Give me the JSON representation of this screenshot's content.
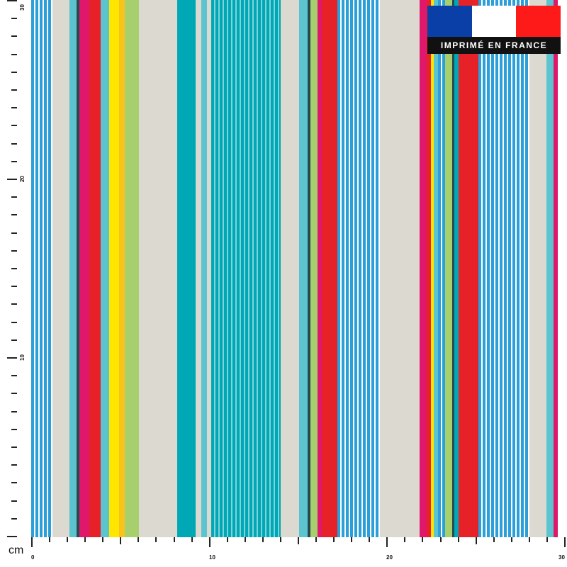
{
  "badge": {
    "text": "IMPRIMÉ EN FRANCE",
    "flag_colors": [
      "#0b3fa8",
      "#ffffff",
      "#ff1a1a"
    ]
  },
  "rulers": {
    "unit": "cm",
    "bottom_labels": [
      "0",
      "10",
      "20",
      "30"
    ],
    "left_labels": [
      "10",
      "20",
      "30"
    ]
  },
  "pattern": {
    "colors": {
      "sky": "#2a9fd9",
      "aqua": "#5cc4cf",
      "teal": "#00a8b5",
      "beige": "#dcd9d1",
      "magenta": "#e0186c",
      "red": "#e62127",
      "yellow": "#ffe600",
      "orange": "#f9c31b",
      "lime": "#a8cf6e",
      "dark": "#264a50"
    },
    "stripes": [
      {
        "w": 30,
        "c": "sky",
        "pin": "#ffffff"
      },
      {
        "w": 24,
        "c": "beige"
      },
      {
        "w": 10,
        "c": "aqua"
      },
      {
        "w": 4,
        "c": "dark"
      },
      {
        "w": 14,
        "c": "magenta"
      },
      {
        "w": 16,
        "c": "red"
      },
      {
        "w": 12,
        "c": "aqua"
      },
      {
        "w": 14,
        "c": "yellow"
      },
      {
        "w": 8,
        "c": "orange"
      },
      {
        "w": 20,
        "c": "lime"
      },
      {
        "w": 54,
        "c": "beige"
      },
      {
        "w": 26,
        "c": "teal"
      },
      {
        "w": 8,
        "c": "beige"
      },
      {
        "w": 8,
        "c": "aqua"
      },
      {
        "w": 6,
        "c": "beige"
      },
      {
        "w": 98,
        "c": "teal",
        "pin": "#7fd3da"
      },
      {
        "w": 26,
        "c": "beige"
      },
      {
        "w": 12,
        "c": "aqua"
      },
      {
        "w": 4,
        "c": "dark"
      },
      {
        "w": 10,
        "c": "lime"
      },
      {
        "w": 6,
        "c": "magenta"
      },
      {
        "w": 22,
        "c": "red"
      },
      {
        "w": 60,
        "c": "sky",
        "pin": "#ffffff"
      },
      {
        "w": 56,
        "c": "beige"
      },
      {
        "w": 10,
        "c": "magenta"
      },
      {
        "w": 6,
        "c": "red"
      },
      {
        "w": 4,
        "c": "yellow"
      },
      {
        "w": 6,
        "c": "aqua"
      },
      {
        "w": 10,
        "c": "sky",
        "pin": "#ffffff"
      },
      {
        "w": 10,
        "c": "lime"
      },
      {
        "w": 3,
        "c": "dark"
      },
      {
        "w": 6,
        "c": "teal"
      },
      {
        "w": 28,
        "c": "red"
      },
      {
        "w": 72,
        "c": "sky",
        "pin": "#ffffff"
      },
      {
        "w": 24,
        "c": "beige"
      },
      {
        "w": 10,
        "c": "aqua"
      },
      {
        "w": 6,
        "c": "magenta"
      }
    ]
  }
}
